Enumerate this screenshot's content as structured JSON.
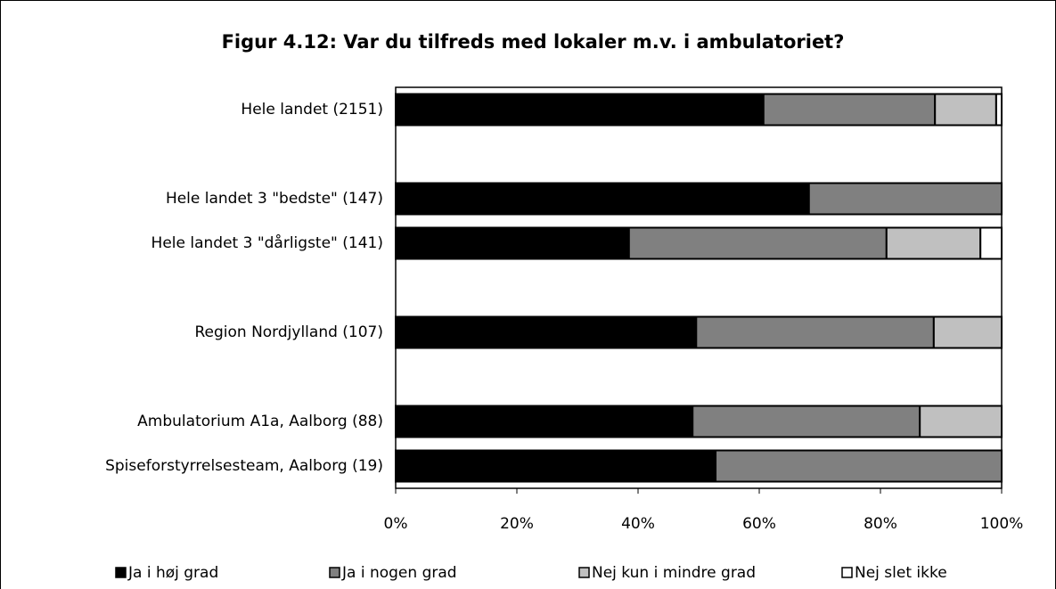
{
  "chart_data": {
    "type": "stacked_barh",
    "title": "Figur 4.12: Var du tilfreds med lokaler m.v. i ambulatoriet?",
    "categories": [
      "Hele landet  (2151)",
      null,
      "Hele landet 3 \"bedste\" (147)",
      "Hele landet 3 \"dårligste\" (141)",
      null,
      "Region Nordjylland (107)",
      null,
      "Ambulatorium A1a, Aalborg (88)",
      "Spiseforstyrrelsesteam, Aalborg (19)"
    ],
    "series": [
      {
        "name": "Ja i høj grad",
        "color": "#000000",
        "values": [
          60.7,
          null,
          68.2,
          38.5,
          null,
          49.6,
          null,
          49.0,
          52.8
        ]
      },
      {
        "name": "Ja i nogen grad",
        "color": "#808080",
        "values": [
          28.3,
          null,
          31.8,
          42.5,
          null,
          39.2,
          null,
          37.5,
          47.2
        ]
      },
      {
        "name": "Nej kun i mindre grad",
        "color": "#c0c0c0",
        "values": [
          10.1,
          null,
          0,
          15.5,
          null,
          11.2,
          null,
          13.5,
          0
        ]
      },
      {
        "name": "Nej slet ikke",
        "color": "#ffffff",
        "values": [
          0.9,
          null,
          0,
          3.5,
          null,
          0,
          null,
          0,
          0
        ]
      }
    ],
    "xlim": [
      0,
      100
    ],
    "xticks": [
      {
        "value": 0,
        "label": "0%"
      },
      {
        "value": 20,
        "label": "20%"
      },
      {
        "value": 40,
        "label": "40%"
      },
      {
        "value": 60,
        "label": "60%"
      },
      {
        "value": 80,
        "label": "80%"
      },
      {
        "value": 100,
        "label": "100%"
      }
    ],
    "legend": "bottom"
  }
}
